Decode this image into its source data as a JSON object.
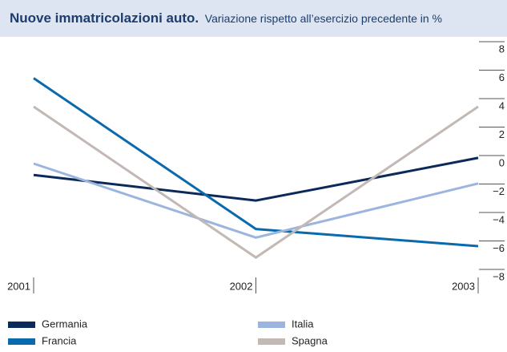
{
  "chart_data": {
    "type": "line",
    "title": "Nuove immatricolazioni auto.",
    "subtitle": "Variazione rispetto all’esercizio precedente in %",
    "categories": [
      "2001",
      "2002",
      "2003"
    ],
    "series": [
      {
        "name": "Germania",
        "color": "#0b2a5a",
        "values": [
          -0.8,
          -2.6,
          0.4
        ]
      },
      {
        "name": "Francia",
        "color": "#0a6aae",
        "values": [
          6,
          -4.6,
          -5.8
        ]
      },
      {
        "name": "Italia",
        "color": "#9bb5de",
        "values": [
          0,
          -5.2,
          -1.4
        ]
      },
      {
        "name": "Spagna",
        "color": "#c2b8b4",
        "values": [
          4,
          -6.6,
          4
        ]
      }
    ],
    "ylim": [
      -8,
      8
    ],
    "yticks": [
      8,
      6,
      4,
      2,
      0,
      {
        "value": -2,
        "label": "−2"
      },
      {
        "value": -4,
        "label": "−4"
      },
      {
        "value": -6,
        "label": "−6"
      },
      {
        "value": -8,
        "label": "−8"
      }
    ]
  }
}
